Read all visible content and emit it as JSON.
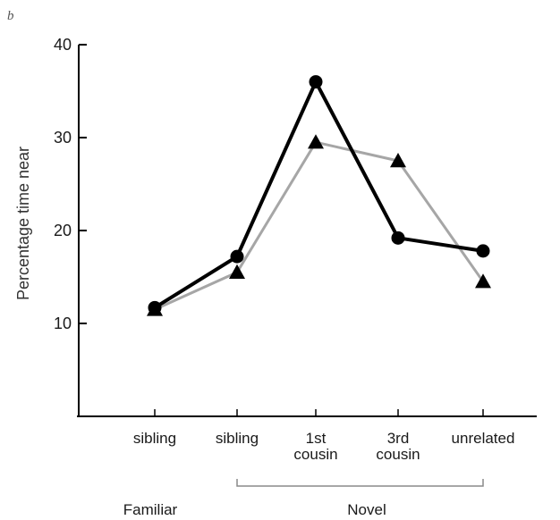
{
  "chart_data": {
    "type": "line",
    "panel_letter": "b",
    "ylabel": "Percentage time near",
    "ylim": [
      0,
      40
    ],
    "yticks": [
      10,
      20,
      30,
      40
    ],
    "grid": false,
    "categories": [
      [
        "sibling"
      ],
      [
        "sibling"
      ],
      [
        "1st",
        "cousin"
      ],
      [
        "3rd",
        "cousin"
      ],
      [
        "unrelated"
      ]
    ],
    "groups": [
      {
        "label": "Familiar",
        "from": 0,
        "to": 0,
        "bracket": false
      },
      {
        "label": "Novel",
        "from": 1,
        "to": 4,
        "bracket": true
      }
    ],
    "series": [
      {
        "marker": "triangle",
        "color": "#a6a6a6",
        "marker_color": "#000000",
        "values": [
          11.5,
          15.5,
          29.5,
          27.5,
          14.5
        ]
      },
      {
        "marker": "circle",
        "color": "#000000",
        "marker_color": "#000000",
        "values": [
          11.7,
          17.2,
          36.0,
          19.2,
          17.8
        ]
      }
    ]
  }
}
